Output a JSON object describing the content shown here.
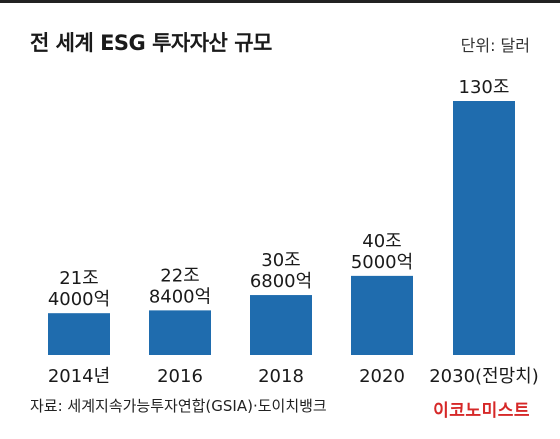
{
  "header": {
    "title": "전 세계 ESG 투자자산 규모",
    "unit": "단위: 달러"
  },
  "footer": {
    "source": "자료: 세계지속가능투자연합(GSIA)·도이치뱅크",
    "brand": "이코노미스트"
  },
  "colors": {
    "bar": "#1f6cae",
    "brand": "#d62828"
  },
  "chart_data": {
    "type": "bar",
    "title": "전 세계 ESG 투자자산 규모",
    "ylabel": "단위: 달러",
    "categories": [
      "2014년",
      "2016",
      "2018",
      "2020",
      "2030(전망치)"
    ],
    "values": [
      21.4,
      22.84,
      30.68,
      40.5,
      130
    ],
    "value_labels": [
      [
        "21조",
        "4000억"
      ],
      [
        "22조",
        "8400억"
      ],
      [
        "30조",
        "6800억"
      ],
      [
        "40조",
        "5000억"
      ],
      [
        "130조"
      ]
    ],
    "ylim": [
      0,
      130
    ],
    "grid": false
  }
}
